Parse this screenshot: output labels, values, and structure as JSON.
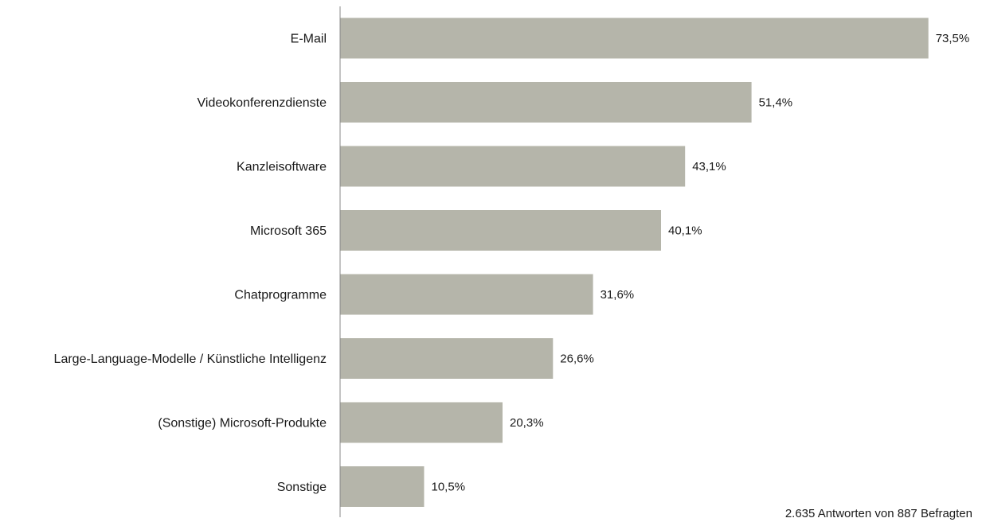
{
  "chart_data": {
    "type": "bar",
    "orientation": "horizontal",
    "categories": [
      "E-Mail",
      "Videokonferenzdienste",
      "Kanzleisoftware",
      "Microsoft 365",
      "Chatprogramme",
      "Large-Language-Modelle / Künstliche Intelligenz",
      "(Sonstige) Microsoft-Produkte",
      "Sonstige"
    ],
    "values": [
      73.5,
      51.4,
      43.1,
      40.1,
      31.6,
      26.6,
      20.3,
      10.5
    ],
    "value_labels": [
      "73,5%",
      "51,4%",
      "43,1%",
      "40,1%",
      "31,6%",
      "26,6%",
      "20,3%",
      "10,5%"
    ],
    "unit": "%",
    "xlim": [
      0,
      80
    ],
    "grid": false,
    "legend": "none",
    "bar_color": "#b5b5aa",
    "axis_color": "#888888",
    "footnote": "2.635 Antworten von 887 Befragten"
  }
}
